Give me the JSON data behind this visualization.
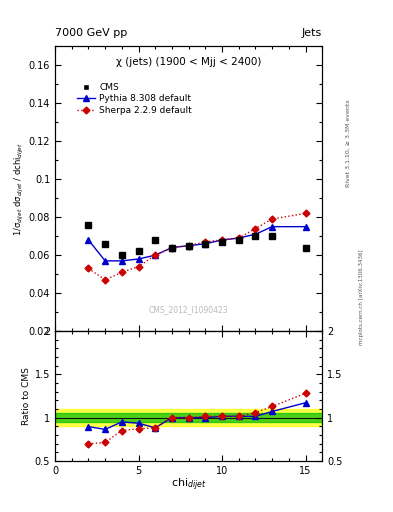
{
  "title_top": "7000 GeV pp",
  "title_right": "Jets",
  "plot_title": "χ (jets) (1900 < Mjj < 2400)",
  "watermark": "CMS_2012_I1090423",
  "rivet_label": "Rivet 3.1.10, ≥ 3.3M events",
  "mcplots_label": "mcplots.cern.ch [arXiv:1306.3436]",
  "ylabel_main": "1/σ$_{dijet}$ dσ$_{dijet}$ / dchi$_{dijet}$",
  "ylabel_ratio": "Ratio to CMS",
  "xlabel": "chi$_{dijet}$",
  "cms_x": [
    2,
    3,
    4,
    5,
    6,
    7,
    8,
    9,
    10,
    11,
    12,
    13,
    15
  ],
  "cms_y": [
    0.076,
    0.066,
    0.06,
    0.062,
    0.068,
    0.064,
    0.065,
    0.066,
    0.067,
    0.068,
    0.07,
    0.07,
    0.064
  ],
  "pythia_x": [
    2,
    3,
    4,
    5,
    6,
    7,
    8,
    9,
    10,
    11,
    12,
    13,
    15
  ],
  "pythia_y": [
    0.068,
    0.057,
    0.057,
    0.058,
    0.06,
    0.064,
    0.065,
    0.066,
    0.068,
    0.069,
    0.071,
    0.075,
    0.075
  ],
  "sherpa_x": [
    2,
    3,
    4,
    5,
    6,
    7,
    8,
    9,
    10,
    11,
    12,
    13,
    15
  ],
  "sherpa_y": [
    0.053,
    0.047,
    0.051,
    0.054,
    0.06,
    0.064,
    0.065,
    0.067,
    0.068,
    0.069,
    0.074,
    0.079,
    0.082
  ],
  "ratio_pythia_y": [
    0.895,
    0.864,
    0.95,
    0.935,
    0.882,
    1.0,
    1.0,
    1.0,
    1.015,
    1.015,
    1.014,
    1.071,
    1.172
  ],
  "ratio_sherpa_y": [
    0.697,
    0.712,
    0.85,
    0.871,
    0.882,
    1.0,
    1.0,
    1.015,
    1.015,
    1.015,
    1.057,
    1.129,
    1.281
  ],
  "ylim_main": [
    0.02,
    0.17
  ],
  "ylim_ratio": [
    0.5,
    2.0
  ],
  "xlim": [
    0,
    16
  ],
  "yticks_main": [
    0.02,
    0.04,
    0.06,
    0.08,
    0.1,
    0.12,
    0.14,
    0.16
  ],
  "ytick_labels_main": [
    "0.02",
    "0.04",
    "0.06",
    "0.08",
    "0.1",
    "0.12",
    "0.14",
    "0.16"
  ],
  "yticks_ratio": [
    0.5,
    1.0,
    1.5,
    2.0
  ],
  "ytick_labels_ratio": [
    "0.5",
    "1",
    "1.5",
    "2"
  ],
  "xticks": [
    0,
    5,
    10,
    15
  ],
  "xtick_labels": [
    "0",
    "5",
    "10",
    "15"
  ],
  "cms_color": "#000000",
  "pythia_color": "#0000cc",
  "sherpa_color": "#cc0000",
  "band_yellow_lo": 0.9,
  "band_yellow_hi": 1.1,
  "band_green_lo": 0.95,
  "band_green_hi": 1.05,
  "bg_color": "#ffffff"
}
